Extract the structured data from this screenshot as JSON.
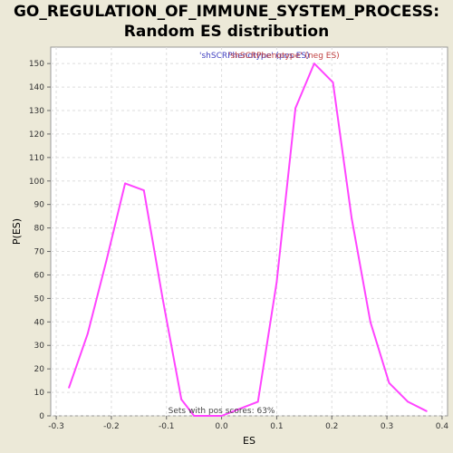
{
  "chart_data": {
    "type": "line",
    "title_line1": "GO_REGULATION_OF_IMMUNE_SYSTEM_PROCESS:",
    "title_line2": "Random ES distribution",
    "xlabel": "ES",
    "ylabel": "P(ES)",
    "xlim": [
      -0.31,
      0.41
    ],
    "ylim": [
      0,
      157
    ],
    "xticks": [
      -0.3,
      -0.2,
      -0.1,
      0.0,
      0.1,
      0.2,
      0.3,
      0.4
    ],
    "xtick_labels": [
      "-0.3",
      "-0.2",
      "-0.1",
      "0.0",
      "0.1",
      "0.2",
      "0.3",
      "0.4"
    ],
    "yticks": [
      0,
      10,
      20,
      30,
      40,
      50,
      60,
      70,
      80,
      90,
      100,
      110,
      120,
      130,
      140,
      150
    ],
    "grid": true,
    "legend_position": "top-center",
    "legend_entries": [
      {
        "text": "'shSCRPhenotype' (pos ES)",
        "color": "#4040c0"
      },
      {
        "text": "'shSCRPhenotype' (neg ES)",
        "color": "#c04040"
      }
    ],
    "annotation": "Sets with pos scores: 63%",
    "series": [
      {
        "color": "#ff44ff",
        "x": [
          -0.277,
          -0.243,
          -0.209,
          -0.175,
          -0.141,
          -0.107,
          -0.073,
          -0.05,
          0.0,
          0.066,
          0.1,
          0.134,
          0.168,
          0.202,
          0.236,
          0.27,
          0.304,
          0.338,
          0.372
        ],
        "y": [
          12,
          35,
          66,
          99,
          96,
          50,
          7,
          0,
          0,
          6,
          57,
          131,
          150,
          142,
          84,
          40,
          14,
          6,
          2
        ]
      }
    ]
  }
}
